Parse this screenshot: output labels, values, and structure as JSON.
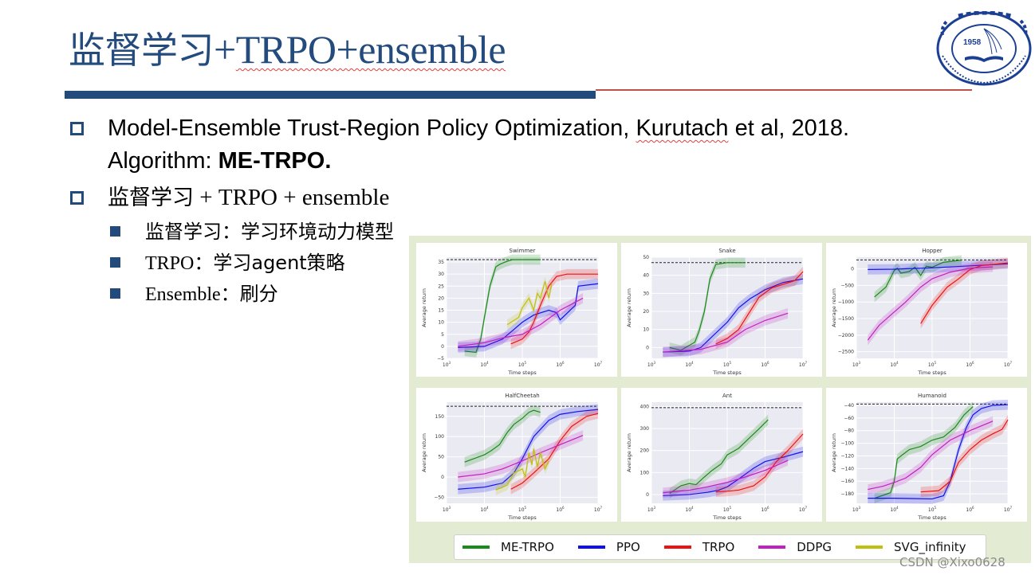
{
  "slide": {
    "title_cjk": "监督学习",
    "title_plus": "+",
    "title_trpo_ensemble": "TRPO+ensemble",
    "bullets": [
      {
        "line1_a": "Model-Ensemble Trust-Region Policy Optimization, ",
        "line1_author": "Kurutach",
        "line1_b": " et al, 2018.",
        "line2_a": "Algorithm: ",
        "line2_bold": "ME-TRPO."
      },
      {
        "cjk": "监督学习",
        "rest": " + TRPO + ensemble",
        "sub": [
          {
            "lead": "",
            "cjk_lead": "监督学习：",
            "text": "学习环境动力模型"
          },
          {
            "lead": "TRPO",
            "cjk_lead": "：",
            "text": "学习agent策略"
          },
          {
            "lead": "Ensemble",
            "cjk_lead": "：",
            "text": "刷分"
          }
        ]
      }
    ],
    "logo": {
      "year": "1958",
      "text": "University of Science and Technology of China"
    },
    "watermark": "CSDN @Xixo0628"
  },
  "colors": {
    "title": "#234b7d",
    "accent_bar": "#224b7c",
    "accent_line": "#c0504d",
    "figure_bg": "#e3ebd2",
    "plot_bg": "#eaeaf2",
    "ME-TRPO": "#1a8a1a",
    "PPO": "#1010ee",
    "TRPO": "#ee1111",
    "DDPG": "#c020c0",
    "SVG_infinity": "#bfbf10"
  },
  "legend": [
    {
      "label": "ME-TRPO",
      "color": "#1a8a1a"
    },
    {
      "label": "PPO",
      "color": "#1010ee"
    },
    {
      "label": "TRPO",
      "color": "#ee1111"
    },
    {
      "label": "DDPG",
      "color": "#c020c0"
    },
    {
      "label": "SVG_infinity",
      "color": "#bfbf10"
    }
  ],
  "chart_data": [
    {
      "type": "line",
      "title": "Swimmer",
      "xlabel": "Time steps",
      "ylabel": "Average return",
      "xscale": "log",
      "xlim": [
        1000,
        10000000
      ],
      "ylim": [
        -5,
        37
      ],
      "yticks": [
        -5,
        0,
        5,
        10,
        15,
        20,
        25,
        30,
        35
      ],
      "xticks": [
        "10^3",
        "10^4",
        "10^5",
        "10^6",
        "10^7"
      ],
      "reference_line": 36,
      "series": [
        {
          "name": "ME-TRPO",
          "x": [
            3000,
            6000,
            8000,
            10000,
            14000,
            20000,
            25000,
            35000,
            55000,
            80000,
            300000
          ],
          "y": [
            -2,
            -2.5,
            3,
            12,
            25,
            33,
            34,
            35,
            36,
            36,
            36
          ]
        },
        {
          "name": "PPO",
          "x": [
            2000,
            10000,
            30000,
            60000,
            100000,
            200000,
            500000,
            800000,
            1000000,
            2500000,
            3000000,
            10000000
          ],
          "y": [
            -0.5,
            0,
            3,
            7,
            10,
            13,
            15,
            14,
            11,
            17,
            25,
            26
          ]
        },
        {
          "name": "TRPO",
          "x": [
            50000,
            100000,
            150000,
            200000,
            300000,
            500000,
            800000,
            1500000,
            10000000
          ],
          "y": [
            1,
            3,
            6,
            10,
            17,
            25,
            29,
            30,
            30
          ]
        },
        {
          "name": "DDPG",
          "x": [
            2000,
            10000,
            30000,
            100000,
            300000,
            1000000,
            4000000
          ],
          "y": [
            0,
            1.5,
            3.5,
            5,
            9,
            15,
            20
          ]
        },
        {
          "name": "SVG_infinity",
          "x": [
            40000,
            80000,
            100000,
            150000,
            200000,
            250000,
            300000,
            400000,
            500000,
            600000
          ],
          "y": [
            9,
            12,
            16,
            20,
            15,
            22,
            20,
            27,
            20,
            26
          ]
        }
      ]
    },
    {
      "type": "line",
      "title": "Snake",
      "xlabel": "Time steps",
      "ylabel": "Average return",
      "xscale": "log",
      "xlim": [
        1000,
        10000000
      ],
      "ylim": [
        -6,
        50
      ],
      "yticks": [
        0,
        10,
        20,
        30,
        40,
        50
      ],
      "xticks": [
        "10^3",
        "10^4",
        "10^5",
        "10^6",
        "10^7"
      ],
      "reference_line": 47,
      "series": [
        {
          "name": "ME-TRPO",
          "x": [
            3000,
            6000,
            14000,
            18000,
            25000,
            35000,
            50000,
            100000,
            300000
          ],
          "y": [
            0,
            -1.5,
            3,
            9,
            20,
            38,
            46,
            47,
            47
          ]
        },
        {
          "name": "PPO",
          "x": [
            2000,
            10000,
            20000,
            50000,
            100000,
            200000,
            400000,
            1000000,
            3000000,
            10000000
          ],
          "y": [
            -2.5,
            -2,
            0,
            8,
            14,
            22,
            27,
            32,
            36,
            38
          ]
        },
        {
          "name": "TRPO",
          "x": [
            50000,
            100000,
            200000,
            400000,
            700000,
            1500000,
            3000000,
            6000000,
            10000000
          ],
          "y": [
            2,
            5,
            10,
            20,
            28,
            33,
            35,
            37,
            42
          ]
        },
        {
          "name": "DDPG",
          "x": [
            2000,
            20000,
            100000,
            300000,
            1000000,
            4000000
          ],
          "y": [
            -2.5,
            -1,
            3,
            10,
            15,
            19
          ]
        }
      ]
    },
    {
      "type": "line",
      "title": "Hopper",
      "xlabel": "Time steps",
      "ylabel": "Average return",
      "xscale": "log",
      "xlim": [
        1000,
        10000000
      ],
      "ylim": [
        -2700,
        350
      ],
      "yticks": [
        -2500,
        -2000,
        -1500,
        -1000,
        -500,
        0
      ],
      "xticks": [
        "10^3",
        "10^4",
        "10^5",
        "10^6",
        "10^7"
      ],
      "reference_line": 270,
      "series": [
        {
          "name": "ME-TRPO",
          "x": [
            3000,
            6000,
            10000,
            12000,
            15000,
            25000,
            35000,
            50000,
            70000,
            100000,
            200000,
            600000
          ],
          "y": [
            -850,
            -550,
            -50,
            20,
            -130,
            -80,
            50,
            -200,
            80,
            50,
            200,
            260
          ]
        },
        {
          "name": "PPO",
          "x": [
            2000,
            10000,
            100000,
            1000000,
            10000000
          ],
          "y": [
            -20,
            -10,
            30,
            90,
            150
          ]
        },
        {
          "name": "TRPO",
          "x": [
            50000,
            100000,
            250000,
            500000,
            1000000,
            2000000,
            10000000
          ],
          "y": [
            -1650,
            -1100,
            -550,
            -300,
            -20,
            100,
            180
          ]
        },
        {
          "name": "DDPG",
          "x": [
            2000,
            4000,
            10000,
            20000,
            50000,
            100000,
            300000,
            1000000,
            4000000
          ],
          "y": [
            -2150,
            -1700,
            -1300,
            -1000,
            -550,
            -300,
            -100,
            20,
            60
          ]
        }
      ]
    },
    {
      "type": "line",
      "title": "HalfCheetah",
      "xlabel": "Time steps",
      "ylabel": "Average return",
      "xscale": "log",
      "xlim": [
        1000,
        10000000
      ],
      "ylim": [
        -65,
        185
      ],
      "yticks": [
        -50,
        0,
        50,
        100,
        150
      ],
      "xticks": [
        "10^3",
        "10^4",
        "10^5",
        "10^6",
        "10^7"
      ],
      "reference_line": 175,
      "series": [
        {
          "name": "ME-TRPO",
          "x": [
            3000,
            10000,
            15000,
            25000,
            40000,
            60000,
            100000,
            150000,
            200000,
            300000
          ],
          "y": [
            37,
            55,
            65,
            80,
            110,
            130,
            145,
            160,
            165,
            160
          ]
        },
        {
          "name": "PPO",
          "x": [
            2000,
            10000,
            30000,
            60000,
            100000,
            200000,
            500000,
            1000000,
            3000000,
            10000000
          ],
          "y": [
            -30,
            -25,
            -15,
            10,
            45,
            100,
            140,
            155,
            162,
            167
          ]
        },
        {
          "name": "TRPO",
          "x": [
            50000,
            100000,
            200000,
            500000,
            1000000,
            2000000,
            5000000,
            10000000
          ],
          "y": [
            -30,
            -15,
            10,
            45,
            90,
            125,
            150,
            157
          ]
        },
        {
          "name": "DDPG",
          "x": [
            2000,
            10000,
            30000,
            100000,
            300000,
            1000000,
            4000000
          ],
          "y": [
            0,
            8,
            20,
            40,
            60,
            80,
            103
          ]
        },
        {
          "name": "SVG_infinity",
          "x": [
            20000,
            40000,
            60000,
            100000,
            120000,
            150000,
            180000,
            200000,
            250000,
            300000,
            400000,
            500000
          ],
          "y": [
            -32,
            -20,
            10,
            20,
            0,
            60,
            30,
            70,
            25,
            60,
            20,
            40
          ]
        }
      ]
    },
    {
      "type": "line",
      "title": "Ant",
      "xlabel": "Time steps",
      "ylabel": "Average return",
      "xscale": "log",
      "xlim": [
        1000,
        10000000
      ],
      "ylim": [
        -40,
        420
      ],
      "yticks": [
        0,
        100,
        200,
        300,
        400
      ],
      "xticks": [
        "10^3",
        "10^4",
        "10^5",
        "10^6",
        "10^7"
      ],
      "reference_line": 395,
      "series": [
        {
          "name": "ME-TRPO",
          "x": [
            3000,
            6000,
            10000,
            15000,
            25000,
            40000,
            70000,
            100000,
            200000,
            400000,
            700000,
            1200000
          ],
          "y": [
            5,
            40,
            50,
            45,
            80,
            110,
            140,
            180,
            210,
            260,
            300,
            340
          ]
        },
        {
          "name": "PPO",
          "x": [
            2000,
            10000,
            30000,
            60000,
            100000,
            200000,
            500000,
            1000000,
            3000000,
            10000000
          ],
          "y": [
            -5,
            0,
            10,
            20,
            35,
            70,
            120,
            150,
            170,
            195
          ]
        },
        {
          "name": "TRPO",
          "x": [
            50000,
            100000,
            200000,
            500000,
            1000000,
            2000000,
            4000000,
            10000000
          ],
          "y": [
            12,
            15,
            20,
            40,
            80,
            150,
            200,
            275
          ]
        },
        {
          "name": "DDPG",
          "x": [
            2000,
            10000,
            30000,
            100000,
            300000,
            1000000,
            4000000
          ],
          "y": [
            8,
            20,
            35,
            55,
            80,
            110,
            155
          ]
        }
      ]
    },
    {
      "type": "line",
      "title": "Humanoid",
      "xlabel": "Time steps",
      "ylabel": "Average return",
      "xscale": "log",
      "xlim": [
        1000,
        10000000
      ],
      "ylim": [
        -195,
        -35
      ],
      "yticks": [
        -180,
        -160,
        -140,
        -120,
        -100,
        -80,
        -60,
        -40
      ],
      "xticks": [
        "10^3",
        "10^4",
        "10^5",
        "10^6",
        "10^7"
      ],
      "reference_line": -38,
      "series": [
        {
          "name": "ME-TRPO",
          "x": [
            3000,
            8000,
            10000,
            12000,
            15000,
            25000,
            50000,
            100000,
            200000,
            400000,
            700000,
            1200000
          ],
          "y": [
            -187,
            -178,
            -160,
            -125,
            -120,
            -110,
            -105,
            -95,
            -90,
            -75,
            -55,
            -42
          ]
        },
        {
          "name": "PPO",
          "x": [
            2000,
            10000,
            100000,
            200000,
            300000,
            500000,
            800000,
            1200000,
            2000000,
            4000000,
            10000000
          ],
          "y": [
            -187,
            -187,
            -188,
            -183,
            -160,
            -110,
            -75,
            -55,
            -45,
            -40,
            -39
          ]
        },
        {
          "name": "TRPO",
          "x": [
            50000,
            150000,
            300000,
            500000,
            1000000,
            2000000,
            4000000,
            7000000,
            10000000
          ],
          "y": [
            -177,
            -175,
            -160,
            -130,
            -110,
            -95,
            -85,
            -78,
            -63
          ]
        },
        {
          "name": "DDPG",
          "x": [
            2000,
            5000,
            10000,
            20000,
            50000,
            100000,
            300000,
            1000000,
            4000000
          ],
          "y": [
            -173,
            -168,
            -162,
            -155,
            -138,
            -118,
            -95,
            -80,
            -65
          ]
        }
      ]
    }
  ]
}
